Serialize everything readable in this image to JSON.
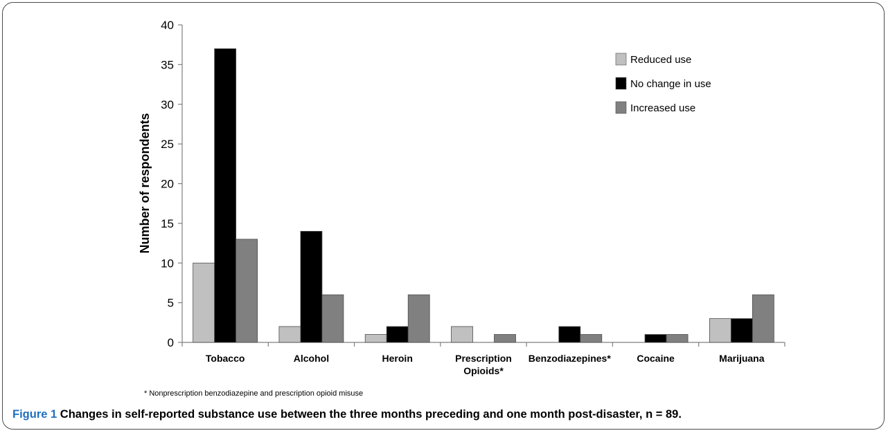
{
  "chart_data": {
    "type": "bar",
    "categories": [
      [
        "Tobacco"
      ],
      [
        "Alcohol"
      ],
      [
        "Heroin"
      ],
      [
        "Prescription",
        "Opioids*"
      ],
      [
        "Benzodiazepines*"
      ],
      [
        "Cocaine"
      ],
      [
        "Marijuana"
      ]
    ],
    "series": [
      {
        "name": "Reduced use",
        "color": "#c0c0c0",
        "values": [
          10,
          2,
          1,
          2,
          0,
          0,
          3
        ]
      },
      {
        "name": "No change in use",
        "color": "#000000",
        "values": [
          37,
          14,
          2,
          0,
          2,
          1,
          3
        ]
      },
      {
        "name": "Increased use",
        "color": "#808080",
        "values": [
          13,
          6,
          6,
          1,
          1,
          1,
          6
        ]
      }
    ],
    "ylabel": "Number of respondents",
    "xlabel": "",
    "ylim": [
      0,
      40
    ],
    "yticks": [
      0,
      5,
      10,
      15,
      20,
      25,
      30,
      35,
      40
    ],
    "grid": false,
    "legend_position": "top-right"
  },
  "footnote": "* Nonprescription benzodiazepine and prescription opioid misuse",
  "caption": {
    "label": "Figure 1",
    "text": "Changes in self-reported substance use between the three months preceding and one month post-disaster, n = 89."
  }
}
